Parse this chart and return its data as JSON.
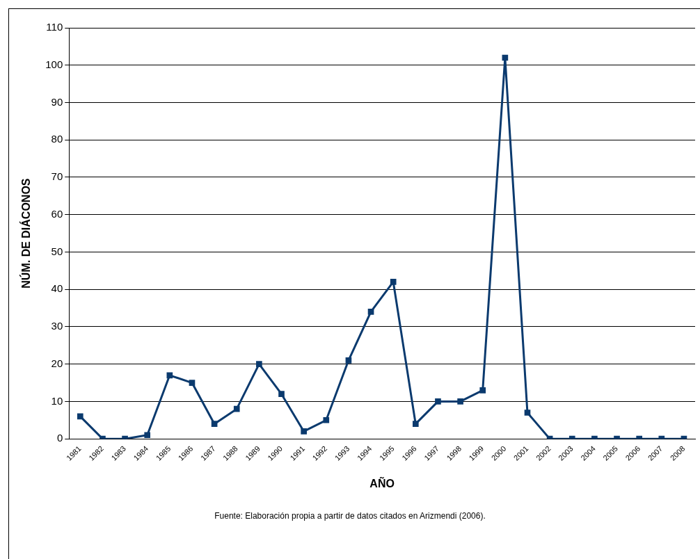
{
  "chart_data": {
    "type": "line",
    "xlabel": "AÑO",
    "ylabel": "NÚM. DE DIÁCONOS",
    "categories": [
      "1981",
      "1982",
      "1983",
      "1984",
      "1985",
      "1986",
      "1987",
      "1988",
      "1989",
      "1990",
      "1991",
      "1992",
      "1993",
      "1994",
      "1995",
      "1996",
      "1997",
      "1998",
      "1999",
      "2000",
      "2001",
      "2002",
      "2003",
      "2004",
      "2005",
      "2006",
      "2007",
      "2008"
    ],
    "series": [
      {
        "color": "#0b3a6e",
        "values": [
          6,
          0,
          0,
          1,
          17,
          15,
          4,
          8,
          20,
          12,
          2,
          5,
          21,
          34,
          42,
          4,
          10,
          10,
          13,
          102,
          7,
          0,
          0,
          0,
          0,
          0,
          0,
          0
        ]
      }
    ],
    "ylim": [
      0,
      110
    ],
    "yticks": [
      0,
      10,
      20,
      30,
      40,
      50,
      60,
      70,
      80,
      90,
      100,
      110
    ],
    "grid": "y",
    "marker": "square",
    "line_style": "solid",
    "legend": false,
    "annotations": [
      "Fuente: Elaboración propia a partir de datos citados en Arizmendi (2006)."
    ]
  }
}
